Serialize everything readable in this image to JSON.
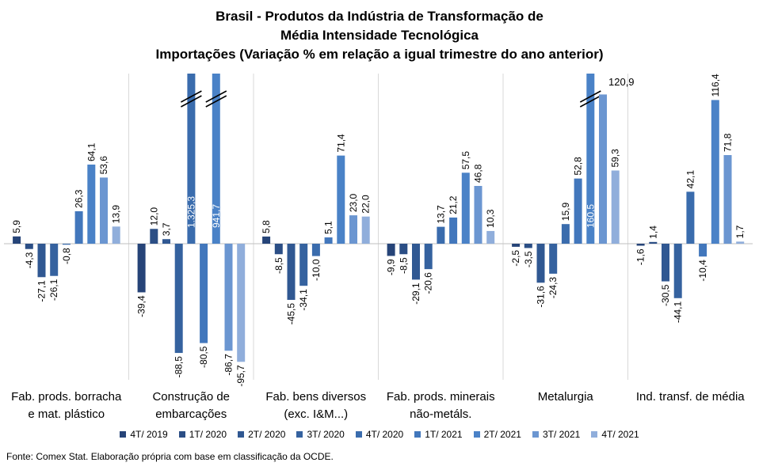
{
  "chart_data": {
    "type": "bar",
    "title_lines": [
      "Brasil - Produtos da Indústria de Transformação de",
      "Média Intensidade Tecnológica",
      "Importações (Variação % em relação a igual trimestre do ano anterior)"
    ],
    "categories": [
      [
        "Fab. prods. borracha",
        "e mat. plástico"
      ],
      [
        "Construção de",
        "embarcações"
      ],
      [
        "Fab. bens diversos",
        "(exc. I&M...)"
      ],
      [
        "Fab. prods. minerais",
        "não-metáls."
      ],
      [
        "Metalurgia"
      ],
      [
        "Ind. transf. de média"
      ]
    ],
    "series": [
      {
        "name": "4T/ 2019",
        "color": "#264478",
        "values": [
          5.9,
          -39.4,
          5.8,
          -9.9,
          -2.5,
          -1.6
        ]
      },
      {
        "name": "1T/ 2020",
        "color": "#2b4e85",
        "values": [
          -4.3,
          12.0,
          -8.5,
          -8.5,
          -3.5,
          1.4
        ]
      },
      {
        "name": "2T/ 2020",
        "color": "#305892",
        "values": [
          -27.1,
          3.7,
          -45.5,
          -29.1,
          -31.6,
          -30.5
        ]
      },
      {
        "name": "3T/ 2020",
        "color": "#35629f",
        "values": [
          -26.1,
          -88.5,
          -34.1,
          -20.6,
          -24.3,
          -44.1
        ]
      },
      {
        "name": "4T/ 2020",
        "color": "#3a6cad",
        "values": [
          -0.8,
          1325.3,
          -10.0,
          13.7,
          15.9,
          42.1
        ]
      },
      {
        "name": "1T/ 2021",
        "color": "#4277bc",
        "values": [
          26.3,
          -80.5,
          5.1,
          21.2,
          52.8,
          -10.4
        ]
      },
      {
        "name": "2T/ 2021",
        "color": "#4a82c7",
        "values": [
          64.1,
          941.7,
          71.4,
          57.5,
          160.5,
          116.4
        ]
      },
      {
        "name": "3T/ 2021",
        "color": "#6b96d1",
        "values": [
          53.6,
          -86.7,
          23.0,
          46.8,
          120.9,
          71.8
        ]
      },
      {
        "name": "4T/ 2021",
        "color": "#90aedb",
        "values": [
          13.9,
          -95.7,
          22.0,
          10.3,
          59.3,
          1.7
        ]
      }
    ],
    "labels": [
      [
        "5,9",
        "-4,3",
        "-27,1",
        "-26,1",
        "-0,8",
        "26,3",
        "64,1",
        "53,6",
        "13,9"
      ],
      [
        "-39,4",
        "12,0",
        "3,7",
        "-88,5",
        "1.325,3",
        "-80,5",
        "941,7",
        "-86,7",
        "-95,7"
      ],
      [
        "5,8",
        "-8,5",
        "-45,5",
        "-34,1",
        "-10,0",
        "5,1",
        "71,4",
        "23,0",
        "22,0"
      ],
      [
        "-9,9",
        "-8,5",
        "-29,1",
        "-20,6",
        "13,7",
        "21,2",
        "57,5",
        "46,8",
        "10,3"
      ],
      [
        "-2,5",
        "-3,5",
        "-31,6",
        "-24,3",
        "15,9",
        "52,8",
        "160,5",
        "120,9",
        "59,3"
      ],
      [
        "-1,6",
        "1,4",
        "-30,5",
        "-44,1",
        "42,1",
        "-10,4",
        "116,4",
        "71,8",
        "1,7"
      ]
    ],
    "ylim": [
      -100,
      140
    ],
    "axis_break": true,
    "grid": false,
    "legend": "bottom"
  },
  "footer": "Fonte: Comex Stat. Elaboração própria com base em classificação da OCDE."
}
